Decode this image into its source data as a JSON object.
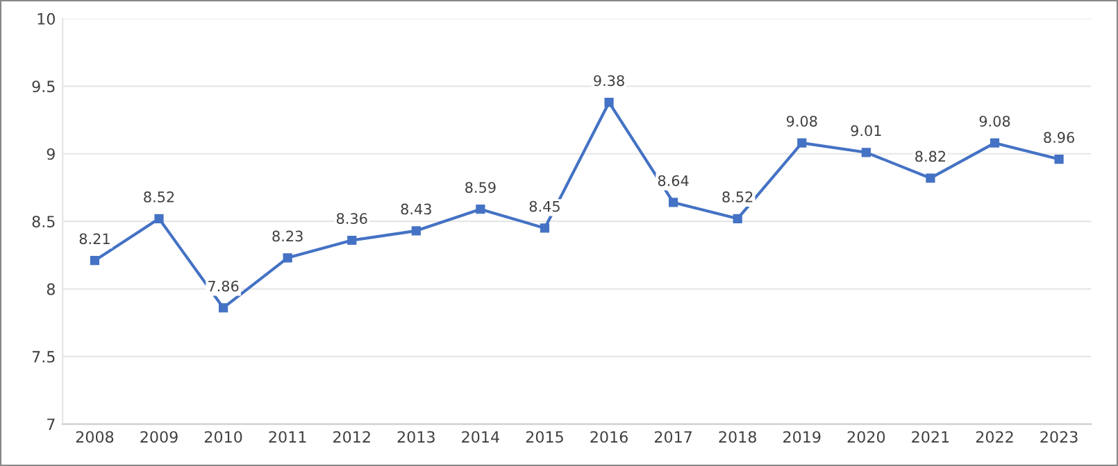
{
  "chart_data": {
    "type": "line",
    "categories": [
      "2008",
      "2009",
      "2010",
      "2011",
      "2012",
      "2013",
      "2014",
      "2015",
      "2016",
      "2017",
      "2018",
      "2019",
      "2020",
      "2021",
      "2022",
      "2023"
    ],
    "series": [
      {
        "color": "#4472c4",
        "values": [
          8.21,
          8.52,
          7.86,
          8.23,
          8.36,
          8.43,
          8.59,
          8.45,
          9.38,
          8.64,
          8.52,
          9.08,
          9.01,
          8.82,
          9.08,
          8.96
        ]
      }
    ],
    "ylim": [
      7,
      10
    ],
    "yticks": [
      7,
      7.5,
      8,
      8.5,
      9,
      9.5,
      10
    ],
    "grid": "y",
    "marker": "square",
    "line_style": "solid",
    "data_labels": true
  }
}
